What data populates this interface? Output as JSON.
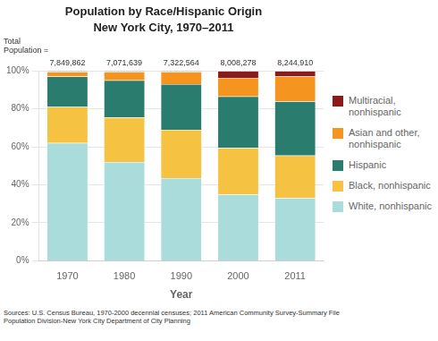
{
  "chart_data": {
    "type": "bar",
    "title": "Population by Race/Hispanic Origin",
    "subtitle": "New York City, 1970–2011",
    "x_label": "Year",
    "categories": [
      "1970",
      "1980",
      "1990",
      "2000",
      "2011"
    ],
    "series": [
      {
        "name": "White, nonhispanic",
        "color": "#aadcdc",
        "values": [
          62.0,
          52.0,
          43.5,
          35.0,
          33.0
        ]
      },
      {
        "name": "Black, nonhispanic",
        "color": "#f5c242",
        "values": [
          19.0,
          23.5,
          25.5,
          24.5,
          22.5
        ]
      },
      {
        "name": "Hispanic",
        "color": "#2a7d6e",
        "values": [
          16.0,
          19.5,
          24.0,
          27.0,
          28.5
        ]
      },
      {
        "name": "Asian and other, nonhispanic",
        "color": "#f59520",
        "values": [
          2.5,
          4.5,
          6.5,
          9.8,
          13.0
        ]
      },
      {
        "name": "Multiracial, nonhispanic",
        "color": "#8b1a1a",
        "values": [
          0.5,
          0.5,
          0.5,
          3.7,
          3.0
        ]
      }
    ],
    "stacked": true,
    "ylim": [
      0,
      100
    ],
    "yticks": [
      {
        "value": 0,
        "label": "0%"
      },
      {
        "value": 20,
        "label": "20%"
      },
      {
        "value": 40,
        "label": "40%"
      },
      {
        "value": 60,
        "label": "60%"
      },
      {
        "value": 80,
        "label": "80%"
      },
      {
        "value": 100,
        "label": "100%"
      }
    ],
    "grid": true,
    "legend": "right",
    "totals": {
      "title": "Total\nPopulation =",
      "values": [
        7849862,
        7071639,
        7322564,
        8008278,
        8244910
      ],
      "value_labels": [
        "7,849,862",
        "7,071,639",
        "7,322,564",
        "8,008,278",
        "8,244,910"
      ]
    },
    "source": "Sources: U.S. Census Bureau, 1970-2000 decennial censuses; 2011 American Community Survey-Summary File\nPopulation Division-New York City Department of City Planning"
  }
}
